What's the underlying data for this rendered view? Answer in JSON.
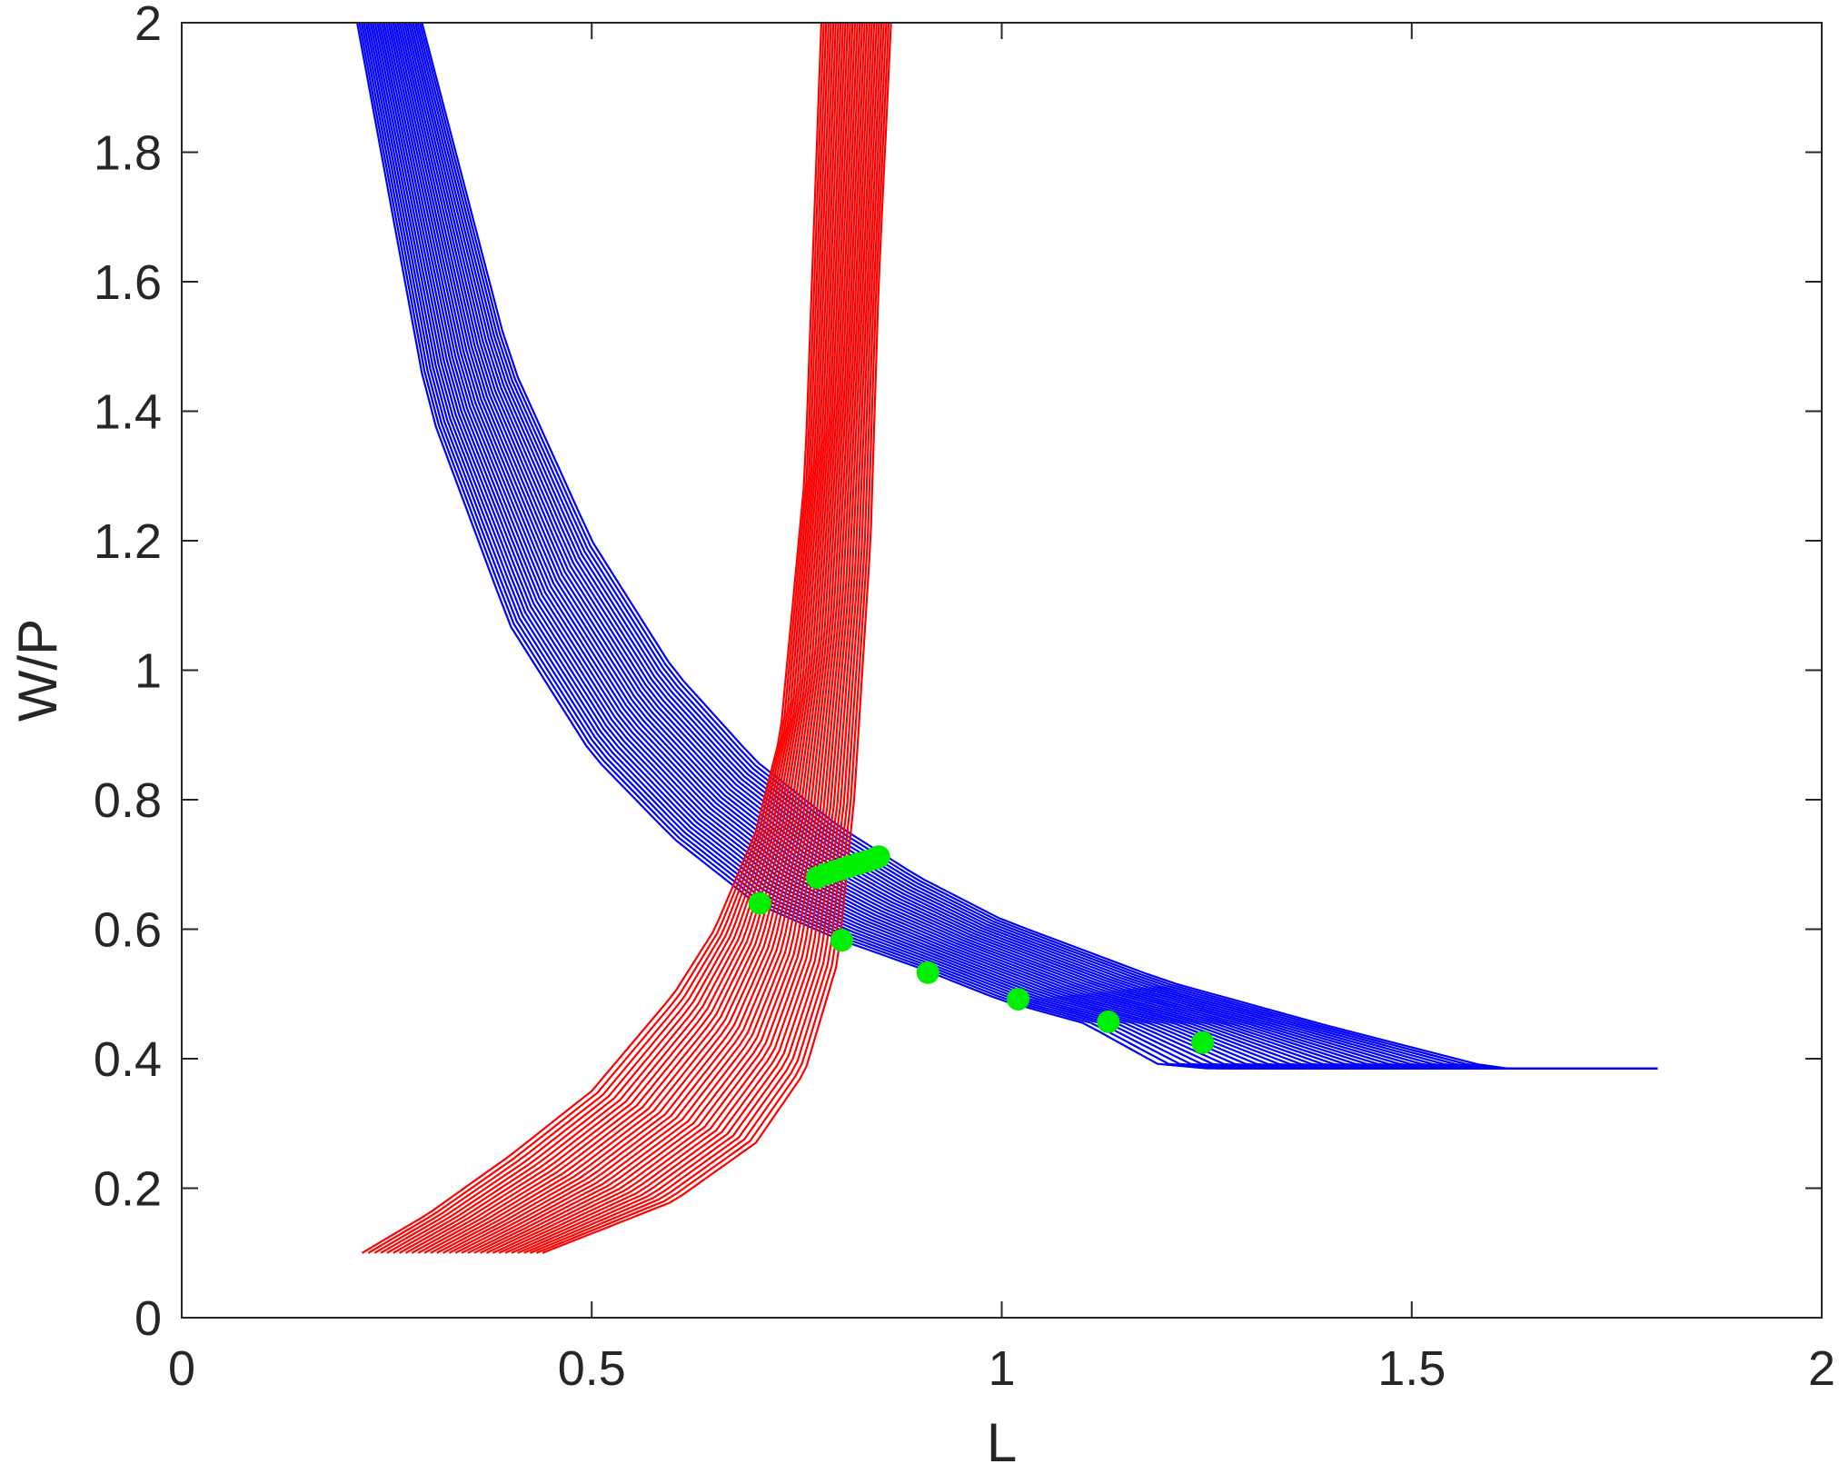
{
  "chart_data": {
    "type": "line",
    "title": "",
    "xlabel": "L",
    "ylabel": "W/P",
    "xlim": [
      0,
      2
    ],
    "ylim": [
      0,
      2
    ],
    "xticks": [
      0,
      0.5,
      1,
      1.5,
      2
    ],
    "xtick_labels": [
      "0",
      "0.5",
      "1",
      "1.5",
      "2"
    ],
    "yticks": [
      0,
      0.2,
      0.4,
      0.6,
      0.8,
      1,
      1.2,
      1.4,
      1.6,
      1.8,
      2
    ],
    "ytick_labels": [
      "0",
      "0.2",
      "0.4",
      "0.6",
      "0.8",
      "1",
      "1.2",
      "1.4",
      "1.6",
      "1.8",
      "2"
    ],
    "grid": false,
    "legend": "none",
    "colors": {
      "demand": "#0000ff",
      "supply": "#ff0000",
      "equilibrium": "#00ee00",
      "axes": "#262626"
    },
    "series": [
      {
        "group": "demand",
        "count": 30,
        "description_of_family": "downward-sloping curves from top-left, flattening at W/P = 0.385",
        "first": {
          "x": [
            0.214,
            0.3,
            0.4,
            0.5,
            0.6,
            0.7,
            0.8,
            0.9,
            1.0,
            1.1,
            1.2,
            1.8
          ],
          "y": [
            2.0,
            1.41,
            1.07,
            0.87,
            0.74,
            0.64,
            0.585,
            0.54,
            0.49,
            0.455,
            0.385,
            0.385
          ]
        },
        "last": {
          "x": [
            0.293,
            0.4,
            0.5,
            0.6,
            0.7,
            0.8,
            0.9,
            1.0,
            1.2,
            1.4,
            1.6,
            1.8
          ],
          "y": [
            2.0,
            1.48,
            1.2,
            1.0,
            0.86,
            0.76,
            0.68,
            0.615,
            0.52,
            0.45,
            0.385,
            0.385
          ]
        }
      },
      {
        "group": "supply",
        "count": 30,
        "description_of_family": "upward-sloping curves from W/P = 0.1, turning vertical near L = 0.85",
        "first": {
          "x": [
            0.22,
            0.3,
            0.4,
            0.5,
            0.6,
            0.65,
            0.7,
            0.73,
            0.76,
            0.78
          ],
          "y": [
            0.1,
            0.16,
            0.25,
            0.35,
            0.5,
            0.6,
            0.75,
            0.9,
            1.3,
            2.0
          ]
        },
        "last": {
          "x": [
            0.44,
            0.5,
            0.6,
            0.7,
            0.76,
            0.8,
            0.82,
            0.84,
            0.85,
            0.865
          ],
          "y": [
            0.1,
            0.13,
            0.18,
            0.27,
            0.38,
            0.55,
            0.8,
            1.2,
            1.6,
            2.0
          ]
        }
      },
      {
        "group": "equilibrium",
        "type": "scatter",
        "points": [
          {
            "x": 0.705,
            "y": 0.64
          },
          {
            "x": 0.805,
            "y": 0.583
          },
          {
            "x": 0.91,
            "y": 0.533
          },
          {
            "x": 1.02,
            "y": 0.492
          },
          {
            "x": 1.13,
            "y": 0.457
          },
          {
            "x": 1.245,
            "y": 0.425
          },
          {
            "x": 0.775,
            "y": 0.68
          },
          {
            "x": 0.785,
            "y": 0.685
          },
          {
            "x": 0.795,
            "y": 0.689
          },
          {
            "x": 0.805,
            "y": 0.693
          },
          {
            "x": 0.815,
            "y": 0.697
          },
          {
            "x": 0.825,
            "y": 0.701
          },
          {
            "x": 0.835,
            "y": 0.705
          },
          {
            "x": 0.845,
            "y": 0.709
          },
          {
            "x": 0.85,
            "y": 0.712
          }
        ]
      }
    ]
  }
}
